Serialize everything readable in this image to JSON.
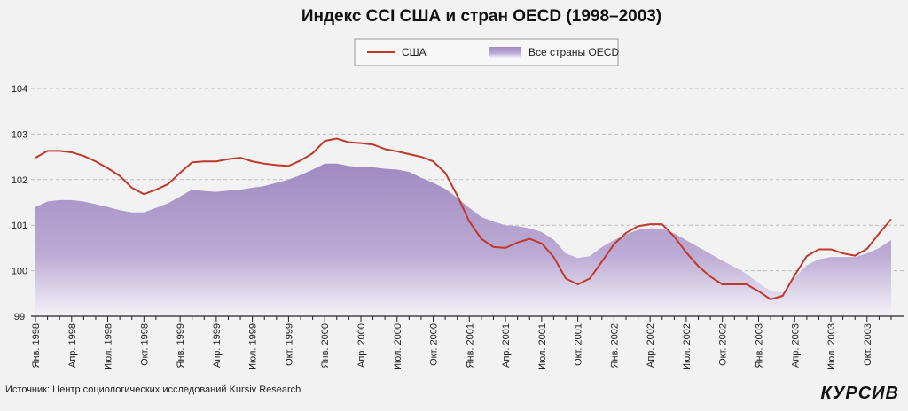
{
  "chart_data": {
    "type": "area",
    "title": "Индекс CCI США и стран OECD (1998–2003)",
    "xlabel": "",
    "ylabel": "",
    "ylim": [
      99,
      104
    ],
    "yticks": [
      "99",
      "100",
      "101",
      "102",
      "103",
      "104"
    ],
    "grid": true,
    "legend_position": "top-center",
    "x_tick_labels": [
      "Янв. 1998",
      "Апр. 1998",
      "Июл. 1998",
      "Окт. 1998",
      "Янв. 1999",
      "Апр. 1999",
      "Июл. 1999",
      "Окт. 1999",
      "Янв. 2000",
      "Апр. 2000",
      "Июл. 2000",
      "Окт. 2000",
      "Янв. 2001",
      "Апр. 2001",
      "Июл. 2001",
      "Окт. 2001",
      "Янв. 2002",
      "Апр. 2002",
      "Июл. 2002",
      "Окт. 2002",
      "Янв. 2003",
      "Апр. 2003",
      "Июл. 2003",
      "Окт. 2003"
    ],
    "series": [
      {
        "name": "США",
        "kind": "line",
        "color": "#c0392b",
        "values": [
          102.48,
          102.63,
          102.63,
          102.6,
          102.52,
          102.4,
          102.25,
          102.08,
          101.82,
          101.68,
          101.78,
          101.9,
          102.15,
          102.38,
          102.4,
          102.4,
          102.45,
          102.48,
          102.4,
          102.35,
          102.32,
          102.3,
          102.42,
          102.58,
          102.85,
          102.9,
          102.82,
          102.8,
          102.77,
          102.67,
          102.62,
          102.56,
          102.5,
          102.4,
          102.15,
          101.65,
          101.08,
          100.7,
          100.52,
          100.5,
          100.62,
          100.7,
          100.6,
          100.3,
          99.83,
          99.7,
          99.83,
          100.2,
          100.58,
          100.83,
          100.98,
          101.02,
          101.02,
          100.75,
          100.4,
          100.1,
          99.87,
          99.7,
          99.7,
          99.7,
          99.55,
          99.37,
          99.45,
          99.9,
          100.32,
          100.47,
          100.47,
          100.38,
          100.33,
          100.48,
          100.82,
          101.13
        ]
      },
      {
        "name": "Все страны OECD",
        "kind": "area",
        "color": "#a690c4",
        "values": [
          101.4,
          101.52,
          101.55,
          101.55,
          101.52,
          101.46,
          101.4,
          101.33,
          101.28,
          101.28,
          101.38,
          101.48,
          101.63,
          101.78,
          101.75,
          101.73,
          101.76,
          101.78,
          101.82,
          101.86,
          101.93,
          102.0,
          102.1,
          102.22,
          102.35,
          102.35,
          102.3,
          102.27,
          102.27,
          102.24,
          102.22,
          102.17,
          102.04,
          101.93,
          101.8,
          101.6,
          101.38,
          101.18,
          101.08,
          101.0,
          100.98,
          100.93,
          100.85,
          100.68,
          100.38,
          100.28,
          100.32,
          100.52,
          100.67,
          100.8,
          100.9,
          100.93,
          100.92,
          100.82,
          100.67,
          100.52,
          100.37,
          100.22,
          100.08,
          99.93,
          99.73,
          99.55,
          99.52,
          99.85,
          100.12,
          100.25,
          100.3,
          100.3,
          100.3,
          100.38,
          100.5,
          100.67
        ]
      }
    ]
  },
  "footer": {
    "source_text": "Источник: Центр социологических исследований Kursiv Research",
    "brand": "КУРСИВ"
  }
}
